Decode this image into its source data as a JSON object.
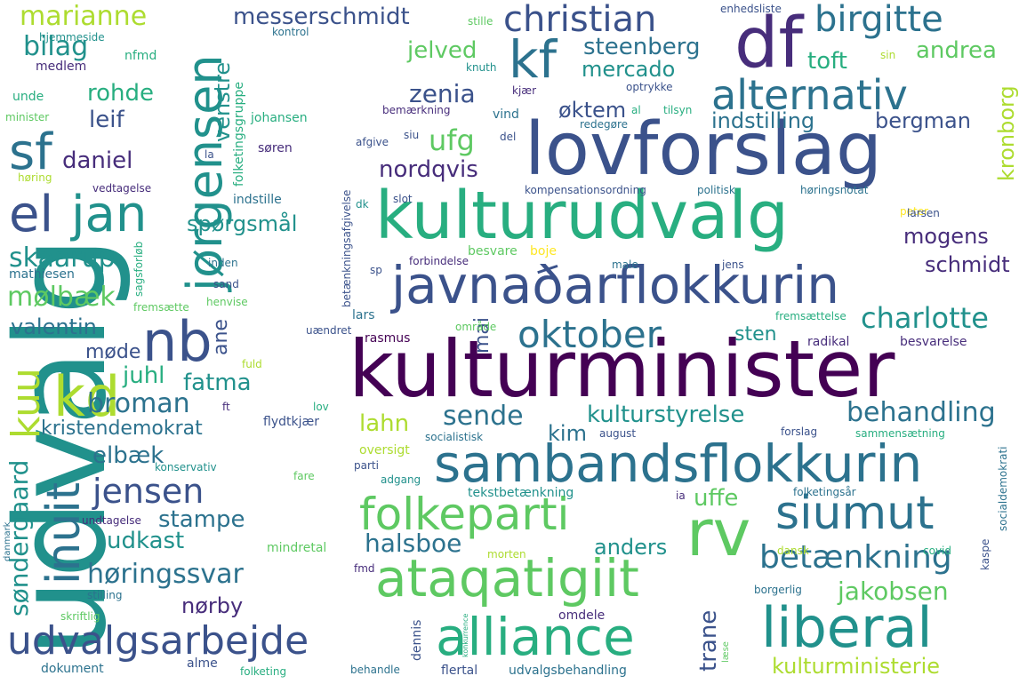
{
  "palette": {
    "c1": "#440154",
    "c2": "#472d7b",
    "c3": "#3b528b",
    "c4": "#2c728e",
    "c5": "#21918c",
    "c6": "#28ae80",
    "c7": "#5ec962",
    "c8": "#addc30",
    "c9": "#fde725"
  },
  "words": [
    {
      "id": "udvalg",
      "text": "udvalg",
      "color": "c5",
      "vertical": true
    },
    {
      "id": "kulturminister",
      "text": "kulturminister",
      "color": "c1"
    },
    {
      "id": "lovforslag",
      "text": "lovforslag",
      "color": "c3"
    },
    {
      "id": "kulturudvalg",
      "text": "kulturudvalg",
      "color": "c6"
    },
    {
      "id": "javnadarflokkurin",
      "text": "javnaðarflokkurin",
      "color": "c3"
    },
    {
      "id": "sambandsflokkurin",
      "text": "sambandsflokkurin",
      "color": "c4"
    },
    {
      "id": "df",
      "text": "df",
      "color": "c2"
    },
    {
      "id": "kf",
      "text": "kf",
      "color": "c4"
    },
    {
      "id": "christian",
      "text": "christian",
      "color": "c3"
    },
    {
      "id": "alternativ",
      "text": "alternativ",
      "color": "c4"
    },
    {
      "id": "birgitte",
      "text": "birgitte",
      "color": "c4"
    },
    {
      "id": "jorgensen",
      "text": "jørgensen",
      "color": "c5",
      "vertical": true
    },
    {
      "id": "jan",
      "text": "jan",
      "color": "c5"
    },
    {
      "id": "sf",
      "text": "sf",
      "color": "c4"
    },
    {
      "id": "el",
      "text": "el",
      "color": "c3"
    },
    {
      "id": "nb",
      "text": "nb",
      "color": "c3"
    },
    {
      "id": "kd",
      "text": "kd",
      "color": "c8"
    },
    {
      "id": "kuu",
      "text": "kuu",
      "color": "c8",
      "vertical": true
    },
    {
      "id": "inuit",
      "text": "inuit",
      "color": "c4",
      "vertical": true
    },
    {
      "id": "oktober",
      "text": "oktober",
      "color": "c4"
    },
    {
      "id": "folkeparti",
      "text": "folkeparti",
      "color": "c7"
    },
    {
      "id": "rv",
      "text": "rv",
      "color": "c7"
    },
    {
      "id": "siumut",
      "text": "siumut",
      "color": "c4"
    },
    {
      "id": "ataqatigiit",
      "text": "ataqatigiit",
      "color": "c7"
    },
    {
      "id": "alliance",
      "text": "alliance",
      "color": "c6"
    },
    {
      "id": "liberal",
      "text": "liberal",
      "color": "c5"
    },
    {
      "id": "udvalgsarbejde",
      "text": "udvalgsarbejde",
      "color": "c3"
    },
    {
      "id": "jensen",
      "text": "jensen",
      "color": "c3"
    },
    {
      "id": "betaenkning",
      "text": "betænkning",
      "color": "c4"
    },
    {
      "id": "marianne",
      "text": "marianne",
      "color": "c8"
    },
    {
      "id": "bilag",
      "text": "bilag",
      "color": "c5"
    },
    {
      "id": "rohde",
      "text": "rohde",
      "color": "c6"
    },
    {
      "id": "leif",
      "text": "leif",
      "color": "c3"
    },
    {
      "id": "daniel",
      "text": "daniel",
      "color": "c2"
    },
    {
      "id": "messerschmidt",
      "text": "messerschmidt",
      "color": "c3"
    },
    {
      "id": "jelved",
      "text": "jelved",
      "color": "c7"
    },
    {
      "id": "steenberg",
      "text": "steenberg",
      "color": "c4"
    },
    {
      "id": "mercado",
      "text": "mercado",
      "color": "c5"
    },
    {
      "id": "zenia",
      "text": "zenia",
      "color": "c3"
    },
    {
      "id": "oktem",
      "text": "øktem",
      "color": "c3"
    },
    {
      "id": "ufg",
      "text": "ufg",
      "color": "c7"
    },
    {
      "id": "nordqvis",
      "text": "nordqvis",
      "color": "c2"
    },
    {
      "id": "venstre",
      "text": "venstre",
      "color": "c5",
      "vertical": true
    },
    {
      "id": "toft",
      "text": "toft",
      "color": "c6"
    },
    {
      "id": "andrea",
      "text": "andrea",
      "color": "c7"
    },
    {
      "id": "kronborg",
      "text": "kronborg",
      "color": "c8",
      "vertical": true
    },
    {
      "id": "indstilling",
      "text": "indstilling",
      "color": "c4"
    },
    {
      "id": "bergman",
      "text": "bergman",
      "color": "c3"
    },
    {
      "id": "mogens",
      "text": "mogens",
      "color": "c2"
    },
    {
      "id": "schmidt",
      "text": "schmidt",
      "color": "c2"
    },
    {
      "id": "charlotte",
      "text": "charlotte",
      "color": "c5"
    },
    {
      "id": "sten",
      "text": "sten",
      "color": "c5"
    },
    {
      "id": "sporgsmal",
      "text": "spørgsmål",
      "color": "c5"
    },
    {
      "id": "skaarup",
      "text": "skaarup",
      "color": "c5"
    },
    {
      "id": "molbaek",
      "text": "mølbæk",
      "color": "c7"
    },
    {
      "id": "valentin",
      "text": "valentin",
      "color": "c4"
    },
    {
      "id": "ane",
      "text": "ane",
      "color": "c3",
      "vertical": true
    },
    {
      "id": "mode",
      "text": "møde",
      "color": "c3"
    },
    {
      "id": "juhl",
      "text": "juhl",
      "color": "c6"
    },
    {
      "id": "fatma",
      "text": "fatma",
      "color": "c5"
    },
    {
      "id": "broman",
      "text": "broman",
      "color": "c4"
    },
    {
      "id": "kristendemokrat",
      "text": "kristendemokrat",
      "color": "c4"
    },
    {
      "id": "sondergaard",
      "text": "søndergaard",
      "color": "c5",
      "vertical": true
    },
    {
      "id": "elbaek",
      "text": "elbæk",
      "color": "c4"
    },
    {
      "id": "stampe",
      "text": "stampe",
      "color": "c4"
    },
    {
      "id": "udkast",
      "text": "udkast",
      "color": "c5"
    },
    {
      "id": "horingssvar",
      "text": "høringssvar",
      "color": "c4"
    },
    {
      "id": "norby",
      "text": "nørby",
      "color": "c2"
    },
    {
      "id": "lahn",
      "text": "lahn",
      "color": "c8"
    },
    {
      "id": "sende",
      "text": "sende",
      "color": "c4"
    },
    {
      "id": "kim",
      "text": "kim",
      "color": "c4"
    },
    {
      "id": "kulturstyrelse",
      "text": "kulturstyrelse",
      "color": "c5"
    },
    {
      "id": "behandling",
      "text": "behandling",
      "color": "c4"
    },
    {
      "id": "mai",
      "text": "mai",
      "color": "c3",
      "vertical": true
    },
    {
      "id": "uffe",
      "text": "uffe",
      "color": "c7"
    },
    {
      "id": "halsboe",
      "text": "halsboe",
      "color": "c4"
    },
    {
      "id": "anders",
      "text": "anders",
      "color": "c5"
    },
    {
      "id": "jakobsen",
      "text": "jakobsen",
      "color": "c7"
    },
    {
      "id": "trane",
      "text": "trane",
      "color": "c3",
      "vertical": true
    },
    {
      "id": "kulturministerie",
      "text": "kulturministerie",
      "color": "c8"
    },
    {
      "id": "enhedsliste",
      "text": "enhedsliste",
      "color": "c3"
    },
    {
      "id": "stille",
      "text": "stille",
      "color": "c7"
    },
    {
      "id": "kontrol",
      "text": "kontrol",
      "color": "c4"
    },
    {
      "id": "hjemmeside",
      "text": "hjemmeside",
      "color": "c5"
    },
    {
      "id": "nfmd",
      "text": "nfmd",
      "color": "c6"
    },
    {
      "id": "medlem",
      "text": "medlem",
      "color": "c2"
    },
    {
      "id": "unde",
      "text": "unde",
      "color": "c6"
    },
    {
      "id": "minister",
      "text": "minister",
      "color": "c7"
    },
    {
      "id": "knuth",
      "text": "knuth",
      "color": "c5"
    },
    {
      "id": "kjaer",
      "text": "kjær",
      "color": "c2"
    },
    {
      "id": "optrykke",
      "text": "optrykke",
      "color": "c3"
    },
    {
      "id": "sin",
      "text": "sin",
      "color": "c8"
    },
    {
      "id": "folketingsgruppe",
      "text": "folketingsgruppe",
      "color": "c6",
      "vertical": true
    },
    {
      "id": "johansen",
      "text": "johansen",
      "color": "c6"
    },
    {
      "id": "bemaerkning",
      "text": "bemærkning",
      "color": "c2"
    },
    {
      "id": "vind",
      "text": "vind",
      "color": "c4"
    },
    {
      "id": "al",
      "text": "al",
      "color": "c6"
    },
    {
      "id": "tilsyn",
      "text": "tilsyn",
      "color": "c6"
    },
    {
      "id": "redegore",
      "text": "redegøre",
      "color": "c4"
    },
    {
      "id": "siu",
      "text": "siu",
      "color": "c3"
    },
    {
      "id": "del",
      "text": "del",
      "color": "c3"
    },
    {
      "id": "afgive",
      "text": "afgive",
      "color": "c3"
    },
    {
      "id": "soren",
      "text": "søren",
      "color": "c2"
    },
    {
      "id": "la",
      "text": "la",
      "color": "c3"
    },
    {
      "id": "horing",
      "text": "høring",
      "color": "c8"
    },
    {
      "id": "vedtagelse",
      "text": "vedtagelse",
      "color": "c2"
    },
    {
      "id": "betaenkningsafgivelse",
      "text": "betænkningsafgivelse",
      "color": "c3",
      "vertical": true
    },
    {
      "id": "kompensationsordning",
      "text": "kompensationsordning",
      "color": "c3"
    },
    {
      "id": "politisk",
      "text": "politisk",
      "color": "c4"
    },
    {
      "id": "horingsnotat",
      "text": "høringsnotat",
      "color": "c4"
    },
    {
      "id": "indstille",
      "text": "indstille",
      "color": "c4"
    },
    {
      "id": "dk",
      "text": "dk",
      "color": "c5"
    },
    {
      "id": "slot",
      "text": "slot",
      "color": "c3"
    },
    {
      "id": "peter",
      "text": "peter",
      "color": "c9"
    },
    {
      "id": "larsen",
      "text": "larsen",
      "color": "c3"
    },
    {
      "id": "inden",
      "text": "inden",
      "color": "c4"
    },
    {
      "id": "sagsforlob",
      "text": "sagsforløb",
      "color": "c6",
      "vertical": true
    },
    {
      "id": "mathiesen",
      "text": "mathiesen",
      "color": "c4"
    },
    {
      "id": "sand",
      "text": "sand",
      "color": "c3"
    },
    {
      "id": "henvise",
      "text": "henvise",
      "color": "c7"
    },
    {
      "id": "sp",
      "text": "sp",
      "color": "c3"
    },
    {
      "id": "besvare",
      "text": "besvare",
      "color": "c7"
    },
    {
      "id": "boje",
      "text": "boje",
      "color": "c9"
    },
    {
      "id": "forbindelse",
      "text": "forbindelse",
      "color": "c2"
    },
    {
      "id": "male",
      "text": "male",
      "color": "c4"
    },
    {
      "id": "jens",
      "text": "jens",
      "color": "c3"
    },
    {
      "id": "fremsaette",
      "text": "fremsætte",
      "color": "c7"
    },
    {
      "id": "lars",
      "text": "lars",
      "color": "c4"
    },
    {
      "id": "uaendret",
      "text": "uændret",
      "color": "c3"
    },
    {
      "id": "omrade",
      "text": "område",
      "color": "c7"
    },
    {
      "id": "rasmus",
      "text": "rasmus",
      "color": "c1"
    },
    {
      "id": "fremsaettelse",
      "text": "fremsættelse",
      "color": "c6"
    },
    {
      "id": "radikal",
      "text": "radikal",
      "color": "c2"
    },
    {
      "id": "besvarelse",
      "text": "besvarelse",
      "color": "c2"
    },
    {
      "id": "fuld",
      "text": "fuld",
      "color": "c8"
    },
    {
      "id": "ft",
      "text": "ft",
      "color": "c2"
    },
    {
      "id": "lov",
      "text": "lov",
      "color": "c6"
    },
    {
      "id": "flydtkjaer",
      "text": "flydtkjær",
      "color": "c3"
    },
    {
      "id": "socialistisk",
      "text": "socialistisk",
      "color": "c4"
    },
    {
      "id": "august",
      "text": "august",
      "color": "c3"
    },
    {
      "id": "forslag",
      "text": "forslag",
      "color": "c3"
    },
    {
      "id": "sammensaetning",
      "text": "sammensætning",
      "color": "c6"
    },
    {
      "id": "konservativ",
      "text": "konservativ",
      "color": "c5"
    },
    {
      "id": "fare",
      "text": "fare",
      "color": "c7"
    },
    {
      "id": "oversigt",
      "text": "oversigt",
      "color": "c8"
    },
    {
      "id": "parti",
      "text": "parti",
      "color": "c3"
    },
    {
      "id": "adgang",
      "text": "adgang",
      "color": "c5"
    },
    {
      "id": "tekstbetaenkning",
      "text": "tekstbetænkning",
      "color": "c5"
    },
    {
      "id": "ia",
      "text": "ia",
      "color": "c2"
    },
    {
      "id": "folketingsar",
      "text": "folketingsår",
      "color": "c4"
    },
    {
      "id": "socialdemokrati",
      "text": "socialdemokrati",
      "color": "c4",
      "vertical": true
    },
    {
      "id": "danmark",
      "text": "danmark",
      "color": "c4",
      "vertical": true
    },
    {
      "id": "undtagelse",
      "text": "undtagelse",
      "color": "c2"
    },
    {
      "id": "mindretal",
      "text": "mindretal",
      "color": "c7"
    },
    {
      "id": "fmd",
      "text": "fmd",
      "color": "c2"
    },
    {
      "id": "morten",
      "text": "morten",
      "color": "c8"
    },
    {
      "id": "dansk",
      "text": "dansk",
      "color": "c8"
    },
    {
      "id": "covid",
      "text": "covid",
      "color": "c6"
    },
    {
      "id": "kaspe",
      "text": "kaspe",
      "color": "c3",
      "vertical": true
    },
    {
      "id": "stilling",
      "text": "stilling",
      "color": "c4"
    },
    {
      "id": "borgerlig",
      "text": "borgerlig",
      "color": "c4"
    },
    {
      "id": "skriftlig",
      "text": "skriftlig",
      "color": "c7"
    },
    {
      "id": "konkurrence",
      "text": "konkurrence",
      "color": "c6",
      "vertical": true
    },
    {
      "id": "omdele",
      "text": "omdele",
      "color": "c2"
    },
    {
      "id": "dennis",
      "text": "dennis",
      "color": "c3",
      "vertical": true
    },
    {
      "id": "laese",
      "text": "læse",
      "color": "c7",
      "vertical": true
    },
    {
      "id": "dokument",
      "text": "dokument",
      "color": "c4"
    },
    {
      "id": "alme",
      "text": "alme",
      "color": "c3"
    },
    {
      "id": "folketing",
      "text": "folketing",
      "color": "c6"
    },
    {
      "id": "behandle",
      "text": "behandle",
      "color": "c4"
    },
    {
      "id": "flertal",
      "text": "flertal",
      "color": "c3"
    },
    {
      "id": "udvalgsbehandling",
      "text": "udvalgsbehandling",
      "color": "c4"
    }
  ]
}
